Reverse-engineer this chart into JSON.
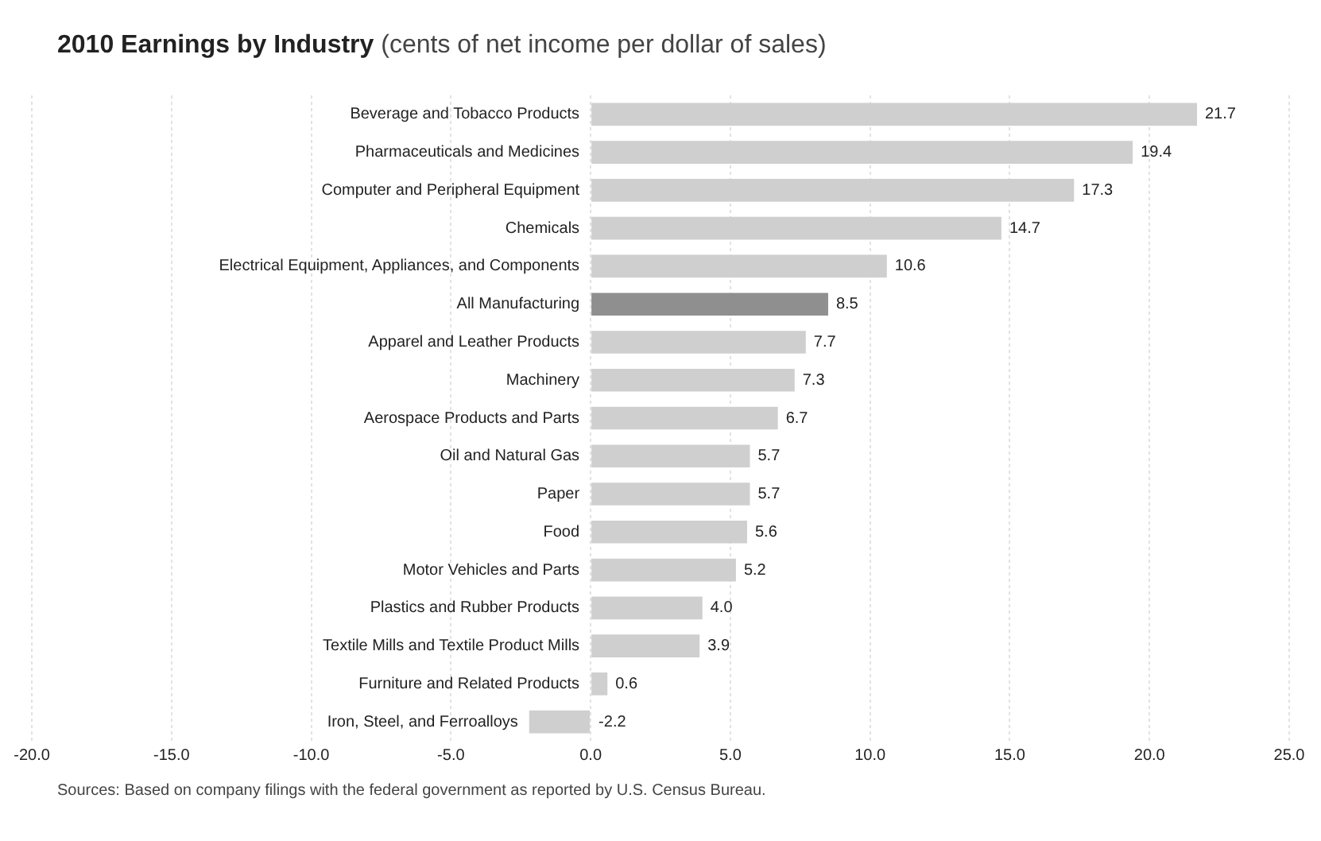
{
  "chart_data": {
    "type": "bar",
    "orientation": "horizontal",
    "title": "2010 Earnings by Industry",
    "subtitle": "(cents of net income per dollar of sales)",
    "categories": [
      "Beverage and Tobacco Products",
      "Pharmaceuticals and Medicines",
      "Computer and Peripheral Equipment",
      "Chemicals",
      "Electrical Equipment, Appliances, and Components",
      "All Manufacturing",
      "Apparel and Leather Products",
      "Machinery",
      "Aerospace Products and Parts",
      "Oil and Natural Gas",
      "Paper",
      "Food",
      "Motor Vehicles and Parts",
      "Plastics and Rubber Products",
      "Textile Mills and Textile Product Mills",
      "Furniture and Related Products",
      "Iron, Steel, and Ferroalloys"
    ],
    "values": [
      21.7,
      19.4,
      17.3,
      14.7,
      10.6,
      8.5,
      7.7,
      7.3,
      6.7,
      5.7,
      5.7,
      5.6,
      5.2,
      4.0,
      3.9,
      0.6,
      -2.2
    ],
    "value_labels": [
      "21.7",
      "19.4",
      "17.3",
      "14.7",
      "10.6",
      "8.5",
      "7.7",
      "7.3",
      "6.7",
      "5.7",
      "5.7",
      "5.6",
      "5.2",
      "4.0",
      "3.9",
      "0.6",
      "-2.2"
    ],
    "colors": [
      "#cfcfcf",
      "#cfcfcf",
      "#cfcfcf",
      "#cfcfcf",
      "#cfcfcf",
      "#8f8f8f",
      "#cfcfcf",
      "#cfcfcf",
      "#cfcfcf",
      "#cfcfcf",
      "#cfcfcf",
      "#cfcfcf",
      "#cfcfcf",
      "#cfcfcf",
      "#cfcfcf",
      "#cfcfcf",
      "#cfcfcf"
    ],
    "xlim": [
      -20,
      25
    ],
    "xticks": [
      {
        "value": -20,
        "label": "-20.0"
      },
      {
        "value": -15,
        "label": "-15.0"
      },
      {
        "value": -10,
        "label": "-10.0"
      },
      {
        "value": -5,
        "label": "-5.0"
      },
      {
        "value": 0,
        "label": "0.0"
      },
      {
        "value": 5,
        "label": "5.0"
      },
      {
        "value": 10,
        "label": "10.0"
      },
      {
        "value": 15,
        "label": "15.0"
      },
      {
        "value": 20,
        "label": "20.0"
      },
      {
        "value": 25,
        "label": "25.0"
      }
    ],
    "grid": "x",
    "annotations": [
      "Sources: Based on company filings with the federal government as reported by U.S. Census Bureau."
    ]
  }
}
